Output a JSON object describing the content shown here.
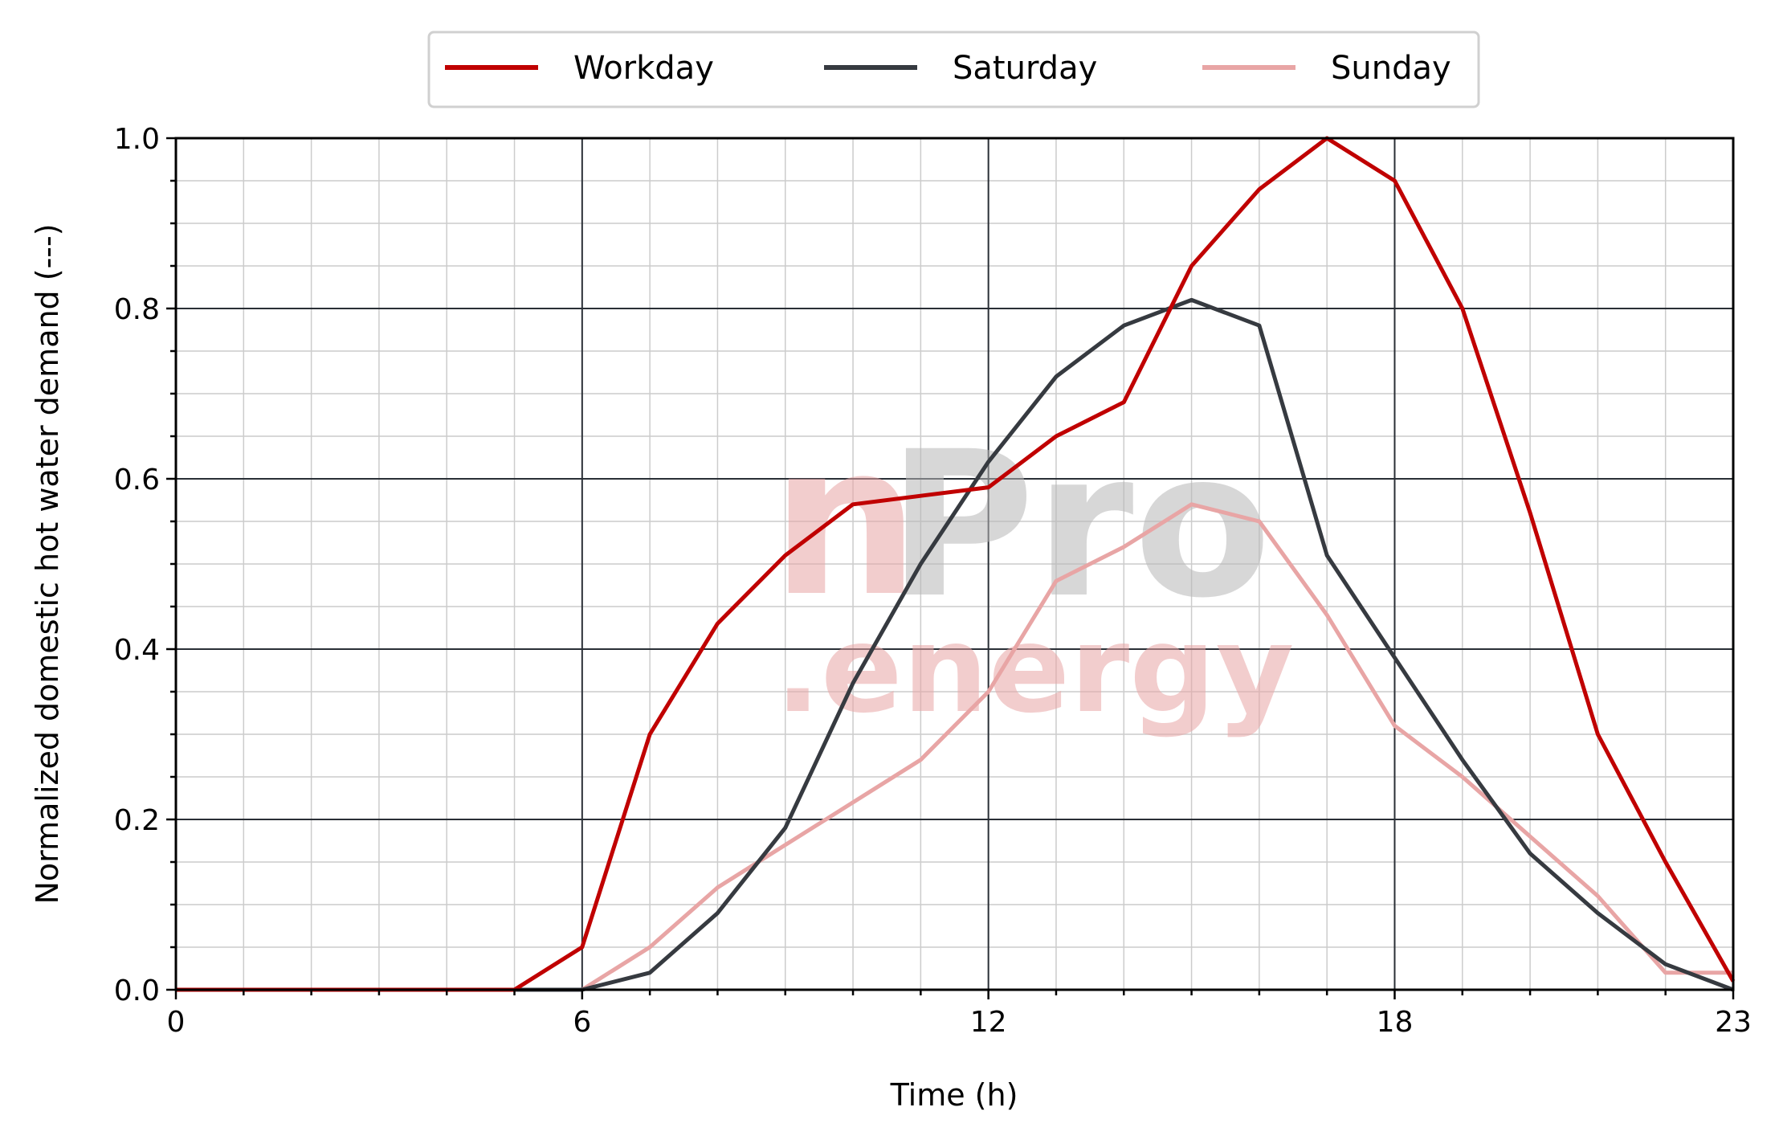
{
  "chart_data": {
    "type": "line",
    "xlabel": "Time (h)",
    "ylabel": "Normalized domestic hot water demand (---)",
    "xlim": [
      0,
      23
    ],
    "ylim": [
      0,
      1.0
    ],
    "x_ticks": [
      0,
      6,
      12,
      18,
      23
    ],
    "x_tick_labels": [
      "0",
      "6",
      "12",
      "18",
      "23"
    ],
    "y_ticks": [
      0.0,
      0.2,
      0.4,
      0.6,
      0.8,
      1.0
    ],
    "y_tick_labels": [
      "0.0",
      "0.2",
      "0.4",
      "0.6",
      "0.8",
      "1.0"
    ],
    "grid": true,
    "legend_position": "top-center",
    "x": [
      0,
      1,
      2,
      3,
      4,
      5,
      6,
      7,
      8,
      9,
      10,
      11,
      12,
      13,
      14,
      15,
      16,
      17,
      18,
      19,
      20,
      21,
      22,
      23
    ],
    "series": [
      {
        "name": "Workday",
        "color": "#c00000",
        "values": [
          0,
          0,
          0,
          0,
          0,
          0,
          0.05,
          0.3,
          0.43,
          0.51,
          0.57,
          0.58,
          0.59,
          0.65,
          0.69,
          0.85,
          0.94,
          1.0,
          0.95,
          0.8,
          0.56,
          0.3,
          0.15,
          0.01
        ]
      },
      {
        "name": "Saturday",
        "color": "#363a40",
        "values": [
          0,
          0,
          0,
          0,
          0,
          0,
          0,
          0.02,
          0.09,
          0.19,
          0.36,
          0.5,
          0.62,
          0.72,
          0.78,
          0.81,
          0.78,
          0.51,
          0.39,
          0.27,
          0.16,
          0.09,
          0.03,
          0.0
        ]
      },
      {
        "name": "Sunday",
        "color": "#e8a5a5",
        "values": [
          0,
          0,
          0,
          0,
          0,
          0,
          0,
          0.05,
          0.12,
          0.17,
          0.22,
          0.27,
          0.35,
          0.48,
          0.52,
          0.57,
          0.55,
          0.44,
          0.31,
          0.25,
          0.18,
          0.11,
          0.02,
          0.02
        ]
      }
    ],
    "watermark": {
      "text_main_1": "n",
      "text_main_2": "Pro",
      "text_sub": ".energy",
      "color_red": "#e8a5a5",
      "color_gray": "#c0c0c0"
    }
  }
}
